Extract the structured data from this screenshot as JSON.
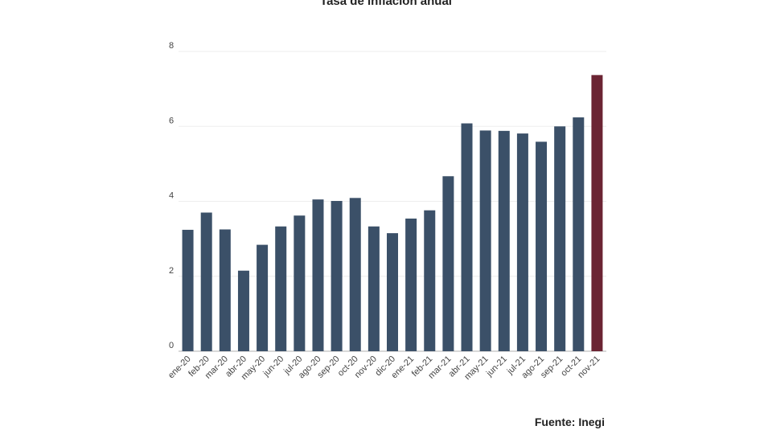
{
  "chart_data": {
    "type": "bar",
    "title": "Tasa de inflación anual",
    "source": "Fuente: Inegi",
    "xlabel": "",
    "ylabel": "",
    "ylim": [
      0,
      8
    ],
    "yticks": [
      0,
      2,
      4,
      6,
      8
    ],
    "grid": true,
    "categories": [
      "ene-20",
      "feb-20",
      "mar-20",
      "abr-20",
      "may-20",
      "jun-20",
      "jul-20",
      "ago-20",
      "sep-20",
      "oct-20",
      "nov-20",
      "dic-20",
      "ene-21",
      "feb-21",
      "mar-21",
      "abr-21",
      "may-21",
      "jun-21",
      "jul-21",
      "ago-21",
      "sep-21",
      "oct-21",
      "nov-21"
    ],
    "values": [
      3.24,
      3.7,
      3.25,
      2.15,
      2.84,
      3.33,
      3.62,
      4.05,
      4.01,
      4.09,
      3.33,
      3.15,
      3.54,
      3.76,
      4.67,
      6.08,
      5.89,
      5.88,
      5.81,
      5.59,
      6.0,
      6.24,
      7.37
    ],
    "colors": {
      "default": "#3b5068",
      "highlight": "#6b2433"
    },
    "highlight_category": "nov-21"
  }
}
